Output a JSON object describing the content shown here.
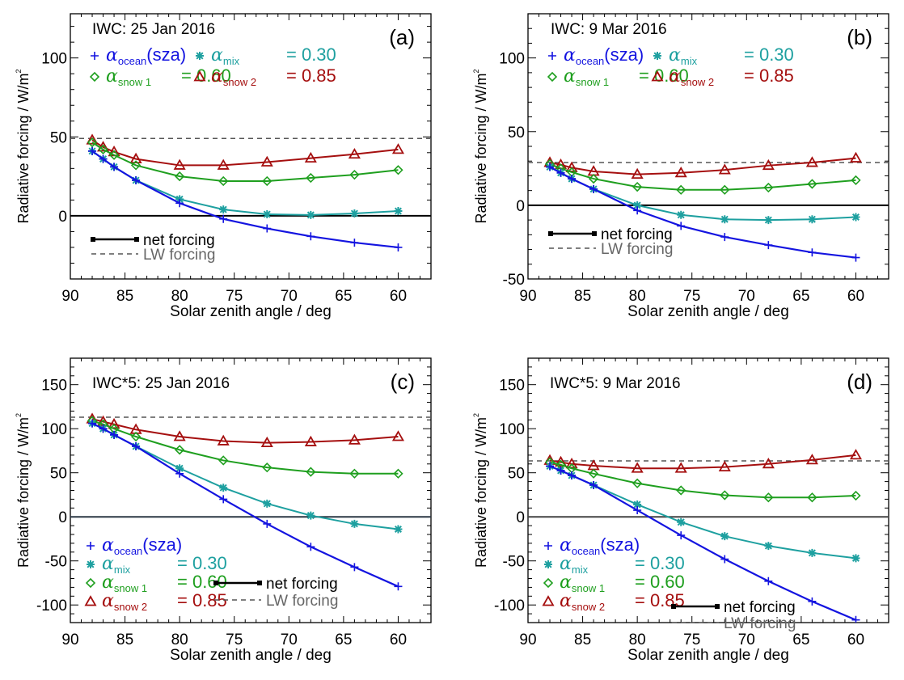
{
  "figure": {
    "xlabel": "Solar zenith angle / deg",
    "ylabel": "Radiative forcing / W/m",
    "ylabel_sup": "2"
  },
  "colors": {
    "ocean": "#1414e0",
    "mix": "#1ea0a0",
    "snow1": "#1f9f1f",
    "snow2": "#a50f0f",
    "lw": "#555555",
    "net": "#000000",
    "lw_text": "#666666"
  },
  "legend": {
    "ocean": {
      "symbol": "+",
      "greek": "α",
      "sub": "ocean",
      "suffix": "(sza)",
      "value": ""
    },
    "mix": {
      "symbol": "✳",
      "greek": "α",
      "sub": "mix",
      "suffix": "",
      "value": "= 0.30"
    },
    "snow1": {
      "symbol": "◇",
      "greek": "α",
      "sub": "snow 1",
      "suffix": "",
      "value": "= 0.60"
    },
    "snow2": {
      "symbol": "△",
      "greek": "α",
      "sub": "snow 2",
      "suffix": "",
      "value": "= 0.85"
    },
    "net_label": "net forcing",
    "lw_label": "LW forcing"
  },
  "chart_data": [
    {
      "type": "line",
      "panel": "(a)",
      "title": "IWC: 25 Jan 2016",
      "xlabel": "Solar zenith angle / deg",
      "ylabel": "Radiative forcing / W/m²",
      "xlim": [
        90,
        57
      ],
      "ylim": [
        -40,
        128
      ],
      "xticks": [
        90,
        85,
        80,
        75,
        70,
        65,
        60
      ],
      "yticks": [
        0,
        50,
        100
      ],
      "ytick_minor": 10,
      "legend_position": "top-left",
      "x": [
        88,
        87,
        86,
        84,
        80,
        76,
        72,
        68,
        64,
        60
      ],
      "series": [
        {
          "name": "α_ocean(sza)",
          "key": "ocean",
          "values": [
            41,
            36,
            31,
            22.5,
            8,
            -2,
            -8,
            -13,
            -17,
            -20
          ]
        },
        {
          "name": "α_mix = 0.30",
          "key": "mix",
          "values": [
            41,
            36,
            31,
            22.5,
            10.5,
            4,
            1,
            0.5,
            1.5,
            3
          ]
        },
        {
          "name": "α_snow1 = 0.60",
          "key": "snow1",
          "values": [
            46.5,
            42,
            38.5,
            32,
            25,
            22,
            22,
            24,
            26,
            29
          ]
        },
        {
          "name": "α_snow2 = 0.85",
          "key": "snow2",
          "values": [
            48,
            43.5,
            40.5,
            36,
            32,
            32,
            34,
            36.5,
            39,
            42
          ]
        }
      ],
      "lw_forcing": 49
    },
    {
      "type": "line",
      "panel": "(b)",
      "title": "IWC: 9 Mar 2016",
      "xlabel": "Solar zenith angle / deg",
      "ylabel": "Radiative forcing / W/m²",
      "xlim": [
        90,
        57
      ],
      "ylim": [
        -50,
        130
      ],
      "xticks": [
        90,
        85,
        80,
        75,
        70,
        65,
        60
      ],
      "yticks": [
        -50,
        0,
        50,
        100
      ],
      "ytick_minor": 10,
      "legend_position": "top-left",
      "x": [
        88,
        87,
        86,
        84,
        80,
        76,
        72,
        68,
        64,
        60
      ],
      "series": [
        {
          "name": "α_ocean(sza)",
          "key": "ocean",
          "values": [
            26,
            22,
            18,
            11,
            -3.5,
            -14,
            -21.5,
            -27,
            -32,
            -35.5
          ]
        },
        {
          "name": "α_mix = 0.30",
          "key": "mix",
          "values": [
            26,
            22,
            18,
            11,
            0,
            -6.5,
            -9.5,
            -10,
            -9.5,
            -8
          ]
        },
        {
          "name": "α_snow1 = 0.60",
          "key": "snow1",
          "values": [
            28,
            25,
            22.5,
            18,
            12.5,
            10.5,
            10.5,
            12,
            14.5,
            17
          ]
        },
        {
          "name": "α_snow2 = 0.85",
          "key": "snow2",
          "values": [
            29,
            27.5,
            25.5,
            23,
            21,
            22,
            24,
            27,
            29,
            32
          ]
        }
      ],
      "lw_forcing": 29
    },
    {
      "type": "line",
      "panel": "(c)",
      "title": "IWC*5:  25 Jan 2016",
      "xlabel": "Solar zenith angle / deg",
      "ylabel": "Radiative forcing / W/m²",
      "xlim": [
        90,
        57
      ],
      "ylim": [
        -120,
        180
      ],
      "xticks": [
        90,
        85,
        80,
        75,
        70,
        65,
        60
      ],
      "yticks": [
        -100,
        -50,
        0,
        50,
        100,
        150
      ],
      "ytick_minor": 10,
      "legend_position": "bottom-left",
      "x": [
        88,
        87,
        86,
        84,
        80,
        76,
        72,
        68,
        64,
        60
      ],
      "series": [
        {
          "name": "α_ocean(sza)",
          "key": "ocean",
          "values": [
            106,
            100,
            93,
            80,
            49,
            20,
            -8,
            -34,
            -57,
            -79
          ]
        },
        {
          "name": "α_mix = 0.30",
          "key": "mix",
          "values": [
            106,
            100,
            93,
            80,
            55,
            33,
            15,
            1.5,
            -8,
            -14
          ]
        },
        {
          "name": "α_snow1 = 0.60",
          "key": "snow1",
          "values": [
            109,
            105,
            100,
            91,
            76,
            64,
            56,
            51,
            49,
            49
          ]
        },
        {
          "name": "α_snow2 = 0.85",
          "key": "snow2",
          "values": [
            111,
            108,
            105,
            99,
            91,
            86,
            84,
            85,
            87,
            91
          ]
        }
      ],
      "lw_forcing": 113
    },
    {
      "type": "line",
      "panel": "(d)",
      "title": "IWC*5:  9 Mar 2016",
      "xlabel": "Solar zenith angle / deg",
      "ylabel": "Radiative forcing / W/m²",
      "xlim": [
        90,
        57
      ],
      "ylim": [
        -120,
        180
      ],
      "xticks": [
        90,
        85,
        80,
        75,
        70,
        65,
        60
      ],
      "yticks": [
        -100,
        -50,
        0,
        50,
        100,
        150
      ],
      "ytick_minor": 10,
      "legend_position": "bottom-left",
      "x": [
        88,
        87,
        86,
        84,
        80,
        76,
        72,
        68,
        64,
        60
      ],
      "series": [
        {
          "name": "α_ocean(sza)",
          "key": "ocean",
          "values": [
            57.5,
            52.5,
            47,
            36,
            7.5,
            -21,
            -48,
            -73,
            -96,
            -117
          ]
        },
        {
          "name": "α_mix = 0.30",
          "key": "mix",
          "values": [
            57.5,
            52.5,
            47,
            36,
            14,
            -6,
            -22,
            -33,
            -41,
            -47
          ]
        },
        {
          "name": "α_snow1 = 0.60",
          "key": "snow1",
          "values": [
            62,
            59,
            55,
            49,
            38,
            30,
            24.5,
            22,
            22,
            24
          ]
        },
        {
          "name": "α_snow2 = 0.85",
          "key": "snow2",
          "values": [
            64,
            62,
            60,
            58,
            55,
            55,
            56.5,
            60,
            64.5,
            70
          ]
        }
      ],
      "lw_forcing": 63.5
    }
  ]
}
